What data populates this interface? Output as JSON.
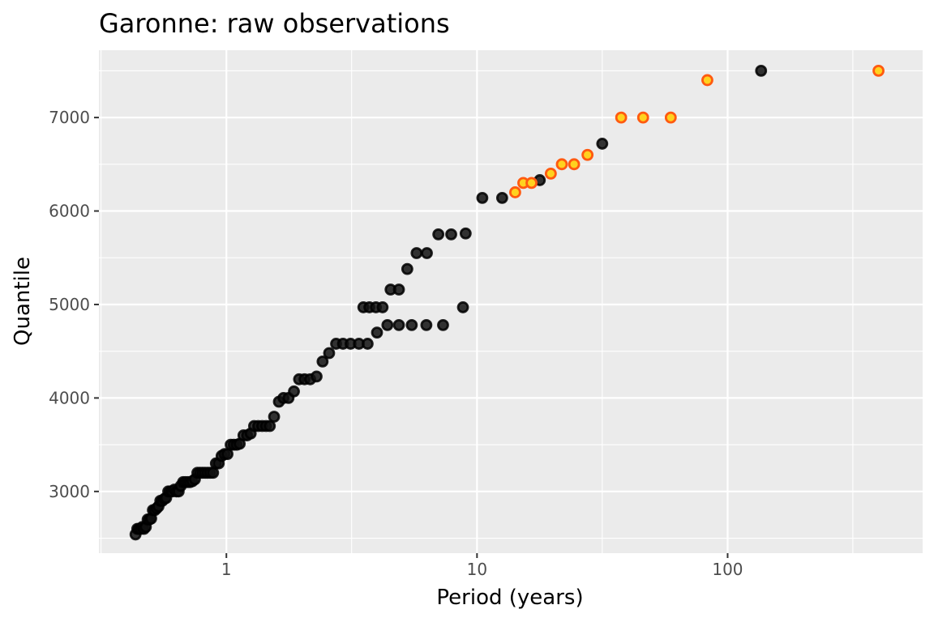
{
  "chart_data": {
    "type": "scatter",
    "title": "Garonne: raw observations",
    "xlabel": "Period (years)",
    "ylabel": "Quantile",
    "x_scale": "log10",
    "xlim": [
      0.31,
      600
    ],
    "ylim": [
      2340,
      7720
    ],
    "x_ticks": [
      1,
      10,
      100
    ],
    "x_tick_labels": [
      "1",
      "10",
      "100"
    ],
    "x_minor_ticks": [
      0.316,
      3.16,
      31.6,
      316
    ],
    "y_ticks": [
      3000,
      4000,
      5000,
      6000,
      7000
    ],
    "y_tick_labels": [
      "3000",
      "4000",
      "5000",
      "6000",
      "7000"
    ],
    "y_minor_ticks": [
      2500,
      3500,
      4500,
      5500,
      6500,
      7500
    ],
    "grid": true,
    "panel_background": "#ebebeb",
    "grid_color": "#ffffff",
    "series": [
      {
        "fill": "#111111",
        "stroke": "#000000",
        "opacity": 0.85,
        "points": [
          [
            0.434,
            2540
          ],
          [
            0.441,
            2600
          ],
          [
            0.448,
            2600
          ],
          [
            0.455,
            2600
          ],
          [
            0.462,
            2620
          ],
          [
            0.469,
            2600
          ],
          [
            0.477,
            2620
          ],
          [
            0.485,
            2700
          ],
          [
            0.493,
            2700
          ],
          [
            0.501,
            2710
          ],
          [
            0.509,
            2800
          ],
          [
            0.518,
            2800
          ],
          [
            0.527,
            2820
          ],
          [
            0.536,
            2840
          ],
          [
            0.545,
            2900
          ],
          [
            0.555,
            2900
          ],
          [
            0.565,
            2920
          ],
          [
            0.575,
            2930
          ],
          [
            0.586,
            3000
          ],
          [
            0.597,
            3000
          ],
          [
            0.608,
            3000
          ],
          [
            0.62,
            3020
          ],
          [
            0.632,
            3000
          ],
          [
            0.645,
            3000
          ],
          [
            0.658,
            3060
          ],
          [
            0.672,
            3100
          ],
          [
            0.686,
            3100
          ],
          [
            0.701,
            3100
          ],
          [
            0.716,
            3100
          ],
          [
            0.732,
            3110
          ],
          [
            0.749,
            3130
          ],
          [
            0.766,
            3200
          ],
          [
            0.784,
            3200
          ],
          [
            0.803,
            3200
          ],
          [
            0.822,
            3200
          ],
          [
            0.842,
            3200
          ],
          [
            0.863,
            3200
          ],
          [
            0.885,
            3200
          ],
          [
            0.908,
            3300
          ],
          [
            0.932,
            3300
          ],
          [
            0.957,
            3380
          ],
          [
            0.983,
            3400
          ],
          [
            1.01,
            3400
          ],
          [
            1.04,
            3500
          ],
          [
            1.07,
            3500
          ],
          [
            1.1,
            3500
          ],
          [
            1.13,
            3510
          ],
          [
            1.17,
            3600
          ],
          [
            1.21,
            3600
          ],
          [
            1.25,
            3620
          ],
          [
            1.29,
            3700
          ],
          [
            1.34,
            3700
          ],
          [
            1.39,
            3700
          ],
          [
            1.44,
            3700
          ],
          [
            1.49,
            3700
          ],
          [
            1.55,
            3800
          ],
          [
            1.62,
            3960
          ],
          [
            1.69,
            4000
          ],
          [
            1.77,
            4000
          ],
          [
            1.86,
            4070
          ],
          [
            1.95,
            4200
          ],
          [
            2.05,
            4200
          ],
          [
            2.16,
            4200
          ],
          [
            2.29,
            4230
          ],
          [
            2.42,
            4390
          ],
          [
            2.57,
            4480
          ],
          [
            2.74,
            4580
          ],
          [
            2.92,
            4580
          ],
          [
            3.13,
            4580
          ],
          [
            3.38,
            4580
          ],
          [
            3.66,
            4580
          ],
          [
            3.99,
            4700
          ],
          [
            4.39,
            4780
          ],
          [
            4.88,
            4780
          ],
          [
            5.49,
            4780
          ],
          [
            6.28,
            4780
          ],
          [
            7.32,
            4780
          ],
          [
            8.79,
            4970
          ],
          [
            3.52,
            4970
          ],
          [
            3.72,
            4970
          ],
          [
            3.95,
            4970
          ],
          [
            4.2,
            4970
          ],
          [
            4.52,
            5160
          ],
          [
            4.88,
            5160
          ],
          [
            5.27,
            5380
          ],
          [
            5.74,
            5550
          ],
          [
            6.31,
            5550
          ],
          [
            7.01,
            5750
          ],
          [
            7.89,
            5750
          ],
          [
            9.01,
            5760
          ],
          [
            10.5,
            6140
          ],
          [
            12.6,
            6140
          ],
          [
            17.8,
            6330
          ],
          [
            31.6,
            6720
          ],
          [
            136,
            7500
          ]
        ]
      },
      {
        "fill": "#ffd21f",
        "stroke": "#ff5a10",
        "opacity": 1,
        "points": [
          [
            14.2,
            6200
          ],
          [
            15.3,
            6300
          ],
          [
            16.5,
            6300
          ],
          [
            19.7,
            6400
          ],
          [
            21.8,
            6500
          ],
          [
            24.4,
            6500
          ],
          [
            27.6,
            6600
          ],
          [
            37.6,
            7000
          ],
          [
            46.0,
            7000
          ],
          [
            59.3,
            7000
          ],
          [
            83.0,
            7400
          ],
          [
            400,
            7500
          ]
        ]
      }
    ]
  }
}
